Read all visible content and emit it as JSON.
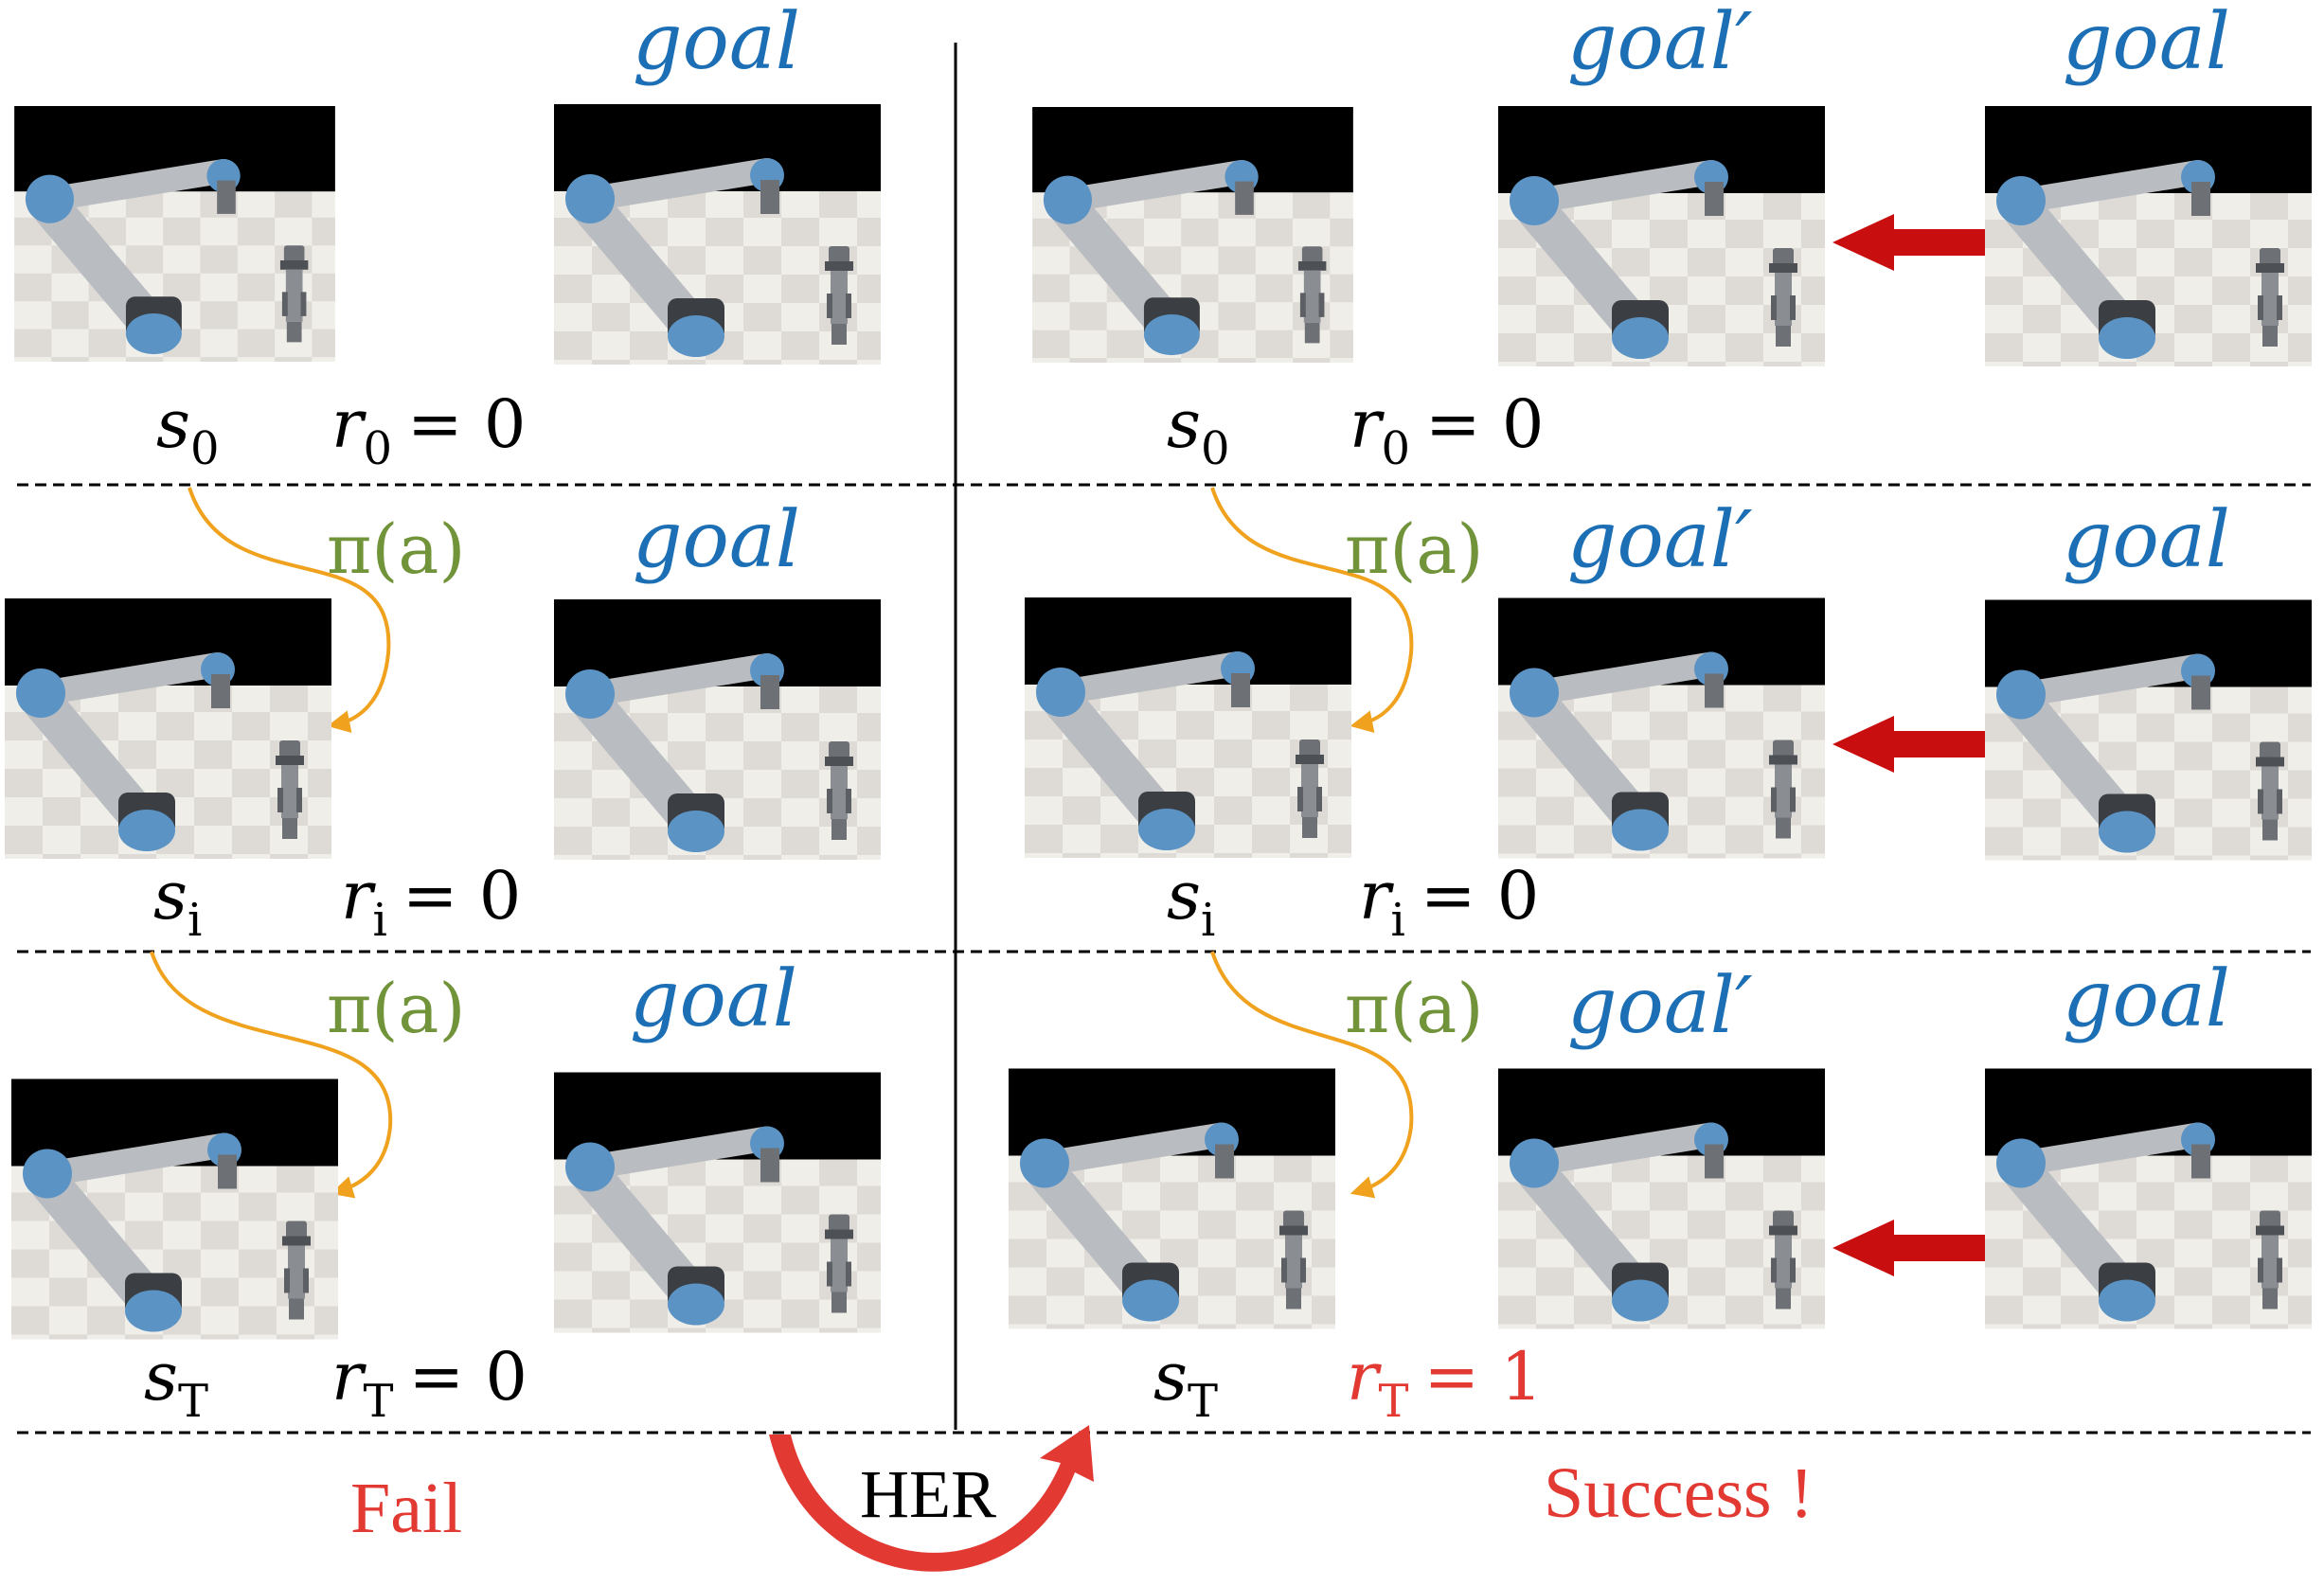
{
  "colors": {
    "goal_blue": "#1c6fb5",
    "policy_green": "#71933a",
    "curve_orange": "#f0a21e",
    "alert_red": "#e23a33",
    "arrow_red": "#c80e0e",
    "robot_blue": "#5b93c4",
    "robot_grey": "#8a8e93",
    "floor_light": "#ebe8e2",
    "floor_dark": "#cdc9c2"
  },
  "goal_labels": {
    "goal": "goal",
    "goal_prime": "goal′"
  },
  "policy_label": "π(a)",
  "states": {
    "s0": {
      "letter": "s",
      "sub": "0"
    },
    "si": {
      "letter": "s",
      "sub": "i"
    },
    "sT": {
      "letter": "s",
      "sub": "T"
    }
  },
  "rewards": {
    "r0": {
      "letter": "r",
      "sub": "0",
      "eq": "= 0"
    },
    "ri": {
      "letter": "r",
      "sub": "i",
      "eq": "= 0"
    },
    "rT_fail": {
      "letter": "r",
      "sub": "T",
      "eq": "= 0"
    },
    "rT_success": {
      "letter": "r",
      "sub": "T",
      "eq": "= 1"
    }
  },
  "outcomes": {
    "fail": "Fail",
    "success": "Success !",
    "her": "HER"
  },
  "icons": [
    "robot-arm-icon",
    "red-arrow-left-icon",
    "orange-curved-arrow-icon",
    "her-curved-arrow-icon"
  ]
}
